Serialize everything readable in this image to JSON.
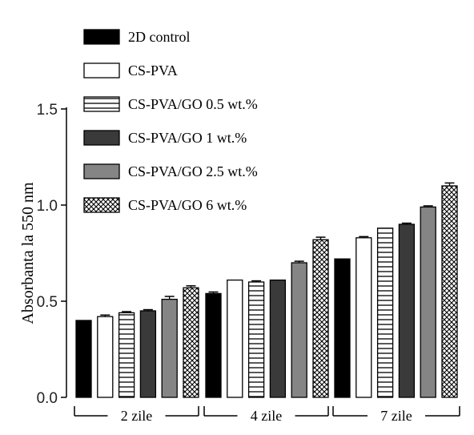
{
  "chart_data": {
    "type": "bar",
    "title": "",
    "xlabel": "",
    "ylabel": "Absorbanta la 550 nm",
    "ylim": [
      0,
      1.5
    ],
    "yticks": [
      "0.0",
      "0.5",
      "1.0",
      "1.5"
    ],
    "grid": false,
    "legend_position": "top-left",
    "categories": [
      "2 zile",
      "4 zile",
      "7 zile"
    ],
    "series": [
      {
        "name": "2D control",
        "fill": "solid-black",
        "color": "#000000",
        "values": [
          0.4,
          0.54,
          0.72
        ],
        "errors": [
          0.0,
          0.008,
          0.0
        ]
      },
      {
        "name": "CS-PVA",
        "fill": "white",
        "color": "#ffffff",
        "values": [
          0.42,
          0.61,
          0.83
        ],
        "errors": [
          0.008,
          0.0,
          0.006
        ]
      },
      {
        "name": "CS-PVA/GO 0.5 wt.%",
        "fill": "horizontal-stripes",
        "color": "#ffffff",
        "values": [
          0.44,
          0.6,
          0.88
        ],
        "errors": [
          0.006,
          0.006,
          0.0
        ]
      },
      {
        "name": "CS-PVA/GO 1 wt.%",
        "fill": "dark-gray",
        "color": "#3a3a3a",
        "values": [
          0.45,
          0.61,
          0.9
        ],
        "errors": [
          0.006,
          0.0,
          0.006
        ]
      },
      {
        "name": "CS-PVA/GO 2.5 wt.%",
        "fill": "medium-gray",
        "color": "#858585",
        "values": [
          0.51,
          0.7,
          0.99
        ],
        "errors": [
          0.015,
          0.008,
          0.006
        ]
      },
      {
        "name": "CS-PVA/GO 6 wt.%",
        "fill": "crosshatch",
        "color": "#ffffff",
        "values": [
          0.57,
          0.82,
          1.1
        ],
        "errors": [
          0.01,
          0.013,
          0.015
        ]
      }
    ]
  }
}
